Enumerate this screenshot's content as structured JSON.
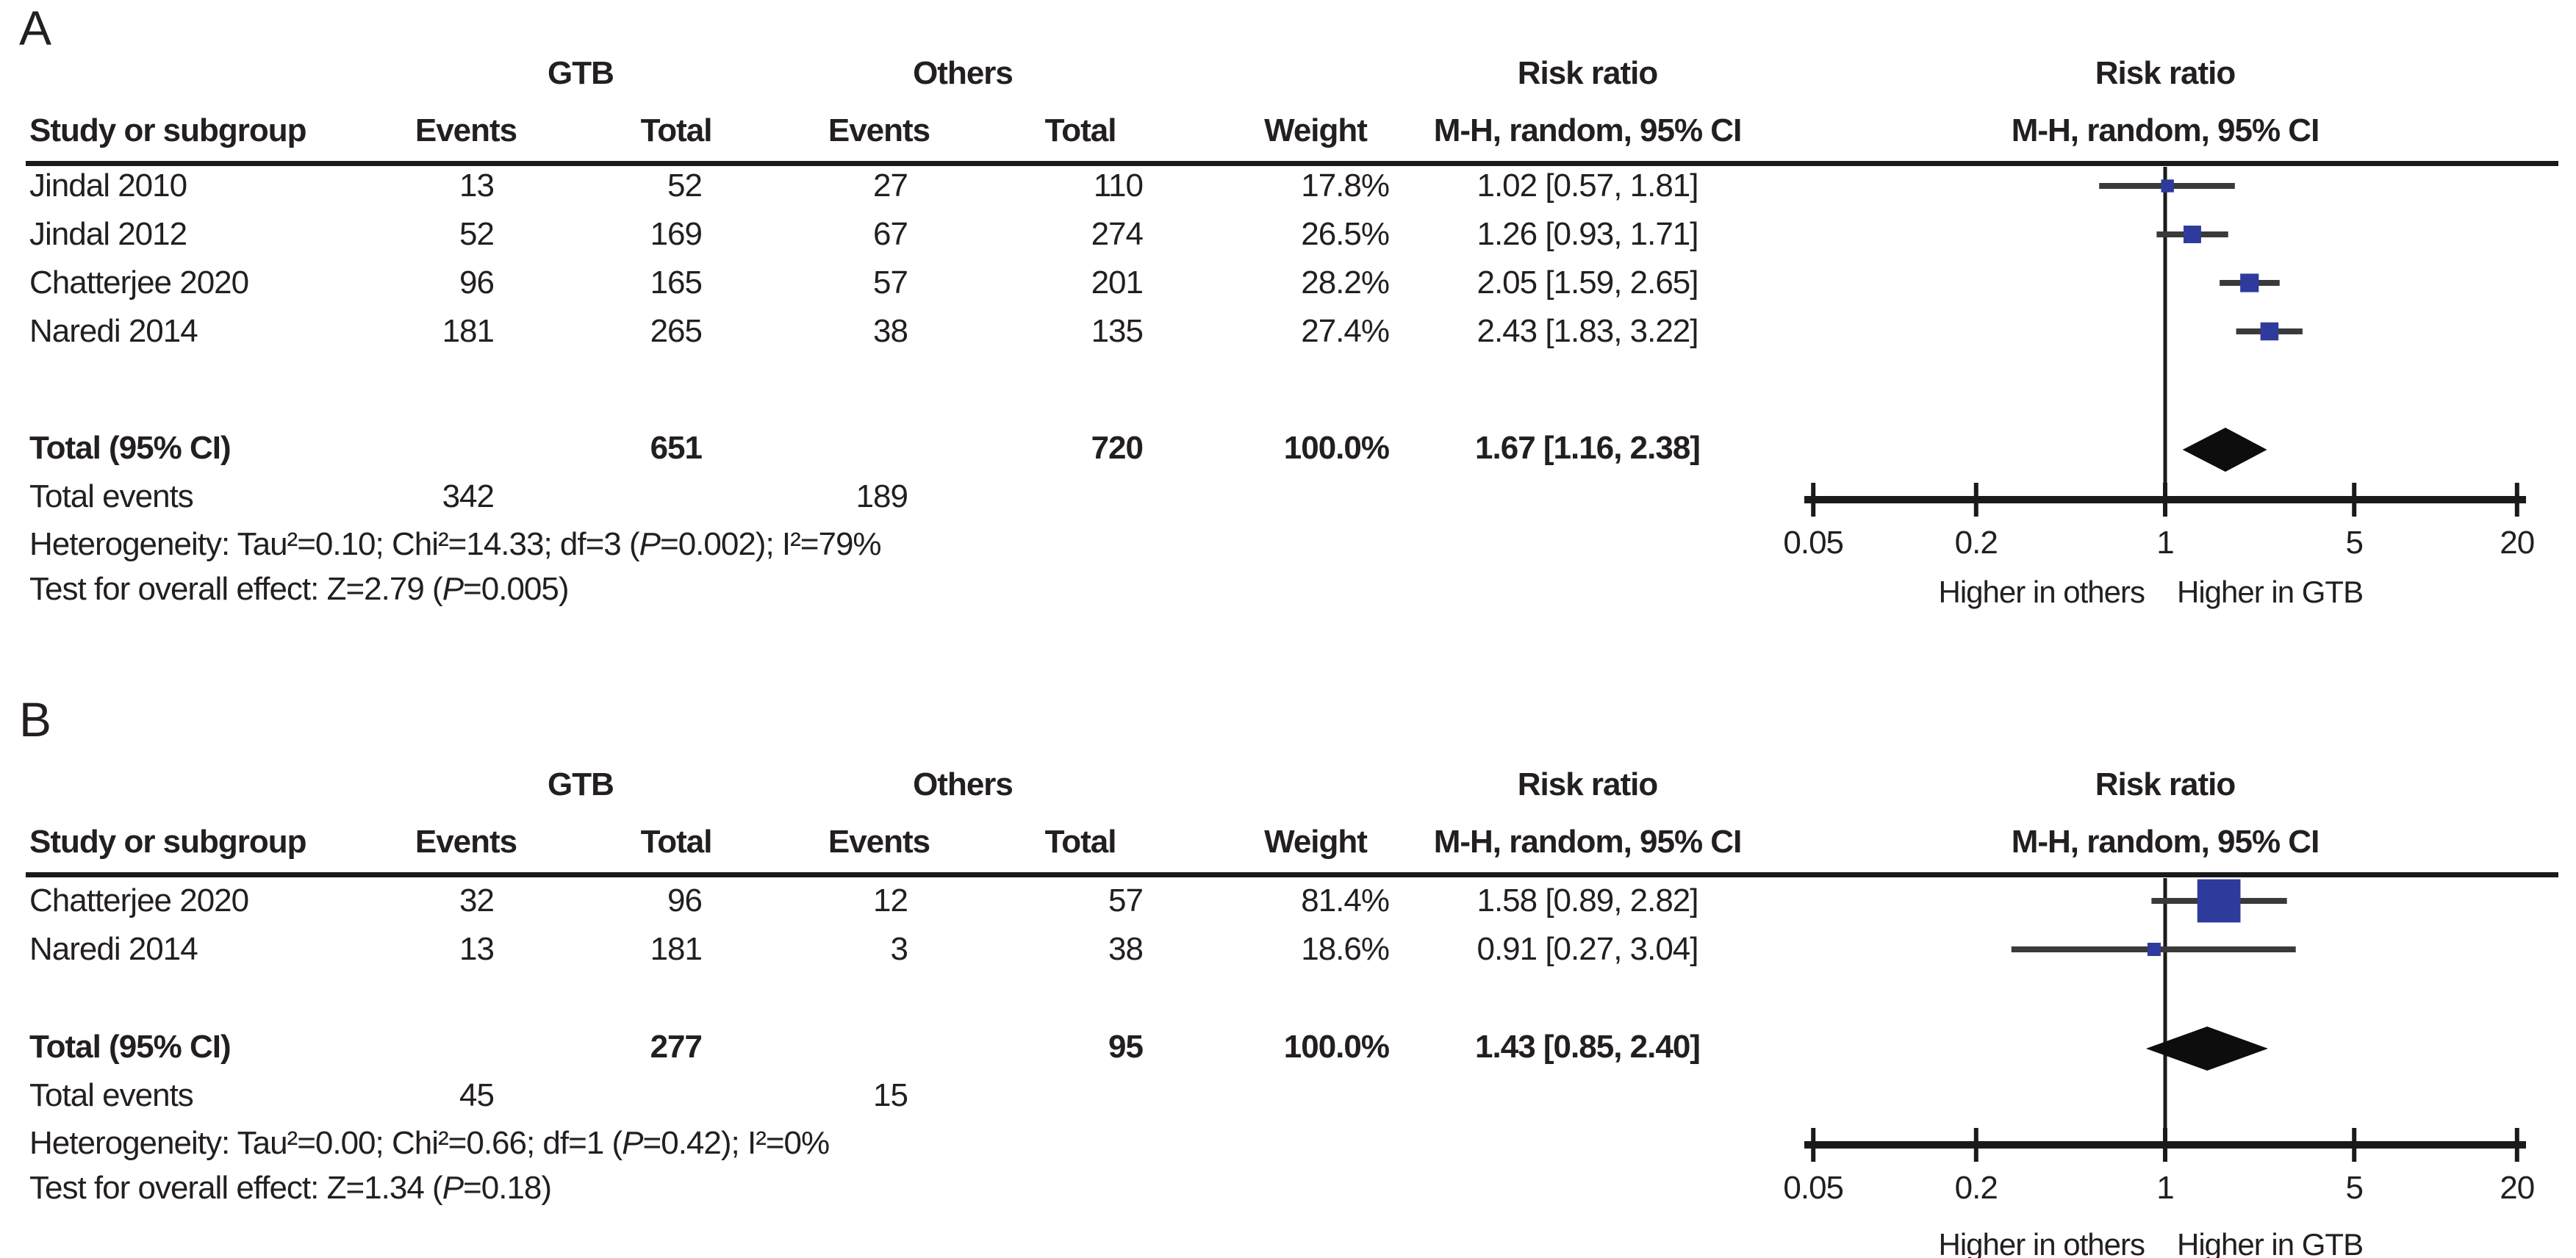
{
  "figure": {
    "background": "#ffffff",
    "text_color": "#231f20",
    "square_color": "#2e3b9d",
    "ci_line_color": "#3a3a3a",
    "diamond_color": "#0d0d0d",
    "axis_color": "#1a1a1a"
  },
  "chart_data": [
    {
      "type": "forest",
      "panel_label": "A",
      "groups": {
        "experimental": "GTB",
        "control": "Others"
      },
      "columns": {
        "study": "Study or subgroup",
        "events": "Events",
        "total": "Total",
        "weight": "Weight"
      },
      "effect_header": "Risk ratio",
      "method_header": "M-H, random, 95% CI",
      "studies": [
        {
          "name": "Jindal 2010",
          "gtb_events": "13",
          "gtb_total": "52",
          "others_events": "27",
          "others_total": "110",
          "weight": "17.8%",
          "weight_value": 17.8,
          "rr": 1.02,
          "ci_low": 0.57,
          "ci_high": 1.81,
          "ci_text": "1.02 [0.57, 1.81]"
        },
        {
          "name": "Jindal 2012",
          "gtb_events": "52",
          "gtb_total": "169",
          "others_events": "67",
          "others_total": "274",
          "weight": "26.5%",
          "weight_value": 26.5,
          "rr": 1.26,
          "ci_low": 0.93,
          "ci_high": 1.71,
          "ci_text": "1.26 [0.93, 1.71]"
        },
        {
          "name": "Chatterjee 2020",
          "gtb_events": "96",
          "gtb_total": "165",
          "others_events": "57",
          "others_total": "201",
          "weight": "28.2%",
          "weight_value": 28.2,
          "rr": 2.05,
          "ci_low": 1.59,
          "ci_high": 2.65,
          "ci_text": "2.05 [1.59, 2.65]"
        },
        {
          "name": "Naredi 2014",
          "gtb_events": "181",
          "gtb_total": "265",
          "others_events": "38",
          "others_total": "135",
          "weight": "27.4%",
          "weight_value": 27.4,
          "rr": 2.43,
          "ci_low": 1.83,
          "ci_high": 3.22,
          "ci_text": "2.43 [1.83, 3.22]"
        }
      ],
      "total": {
        "label": "Total (95% CI)",
        "gtb_total": "651",
        "others_total": "720",
        "weight": "100.0%",
        "rr": 1.67,
        "ci_low": 1.16,
        "ci_high": 2.38,
        "ci_text": "1.67 [1.16, 2.38]"
      },
      "total_events": {
        "label": "Total events",
        "gtb": "342",
        "others": "189"
      },
      "heterogeneity": "Heterogeneity: Tau²=0.10; Chi²=14.33; df=3 (P=0.002); I²=79%",
      "overall_effect": "Test for overall effect: Z=2.79 (P=0.005)",
      "axis": {
        "scale": "log",
        "xlim": [
          0.05,
          20
        ],
        "tick_values": [
          0.05,
          0.2,
          1,
          5,
          20
        ],
        "tick_labels": [
          "0.05",
          "0.2",
          "1",
          "5",
          "20"
        ],
        "left_label": "Higher in others",
        "right_label": "Higher in GTB"
      }
    },
    {
      "type": "forest",
      "panel_label": "B",
      "groups": {
        "experimental": "GTB",
        "control": "Others"
      },
      "columns": {
        "study": "Study or subgroup",
        "events": "Events",
        "total": "Total",
        "weight": "Weight"
      },
      "effect_header": "Risk ratio",
      "method_header": "M-H, random, 95% CI",
      "studies": [
        {
          "name": "Chatterjee 2020",
          "gtb_events": "32",
          "gtb_total": "96",
          "others_events": "12",
          "others_total": "57",
          "weight": "81.4%",
          "weight_value": 81.4,
          "rr": 1.58,
          "ci_low": 0.89,
          "ci_high": 2.82,
          "ci_text": "1.58 [0.89, 2.82]"
        },
        {
          "name": "Naredi 2014",
          "gtb_events": "13",
          "gtb_total": "181",
          "others_events": "3",
          "others_total": "38",
          "weight": "18.6%",
          "weight_value": 18.6,
          "rr": 0.91,
          "ci_low": 0.27,
          "ci_high": 3.04,
          "ci_text": "0.91 [0.27, 3.04]"
        }
      ],
      "total": {
        "label": "Total (95% CI)",
        "gtb_total": "277",
        "others_total": "95",
        "weight": "100.0%",
        "rr": 1.43,
        "ci_low": 0.85,
        "ci_high": 2.4,
        "ci_text": "1.43 [0.85, 2.40]"
      },
      "total_events": {
        "label": "Total events",
        "gtb": "45",
        "others": "15"
      },
      "heterogeneity": "Heterogeneity: Tau²=0.00; Chi²=0.66; df=1 (P=0.42); I²=0%",
      "overall_effect": "Test for overall effect: Z=1.34 (P=0.18)",
      "axis": {
        "scale": "log",
        "xlim": [
          0.05,
          20
        ],
        "tick_values": [
          0.05,
          0.2,
          1,
          5,
          20
        ],
        "tick_labels": [
          "0.05",
          "0.2",
          "1",
          "5",
          "20"
        ],
        "left_label": "Higher in others",
        "right_label": "Higher in GTB"
      }
    }
  ]
}
